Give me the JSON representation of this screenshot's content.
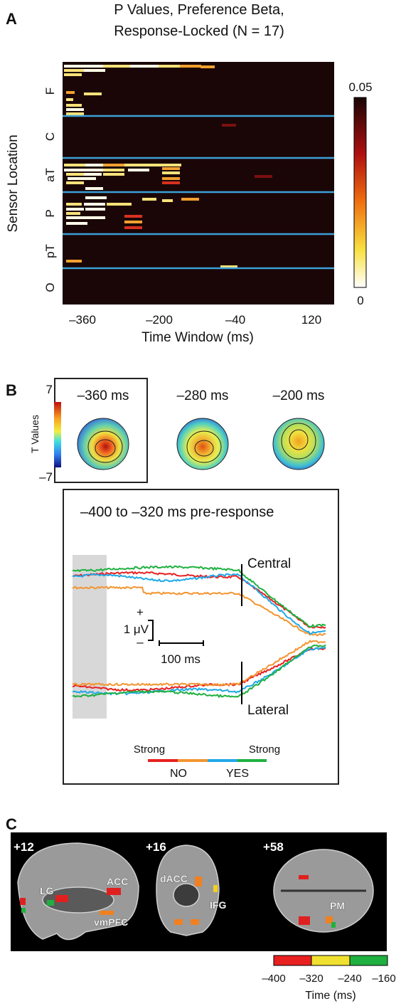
{
  "panel_a": {
    "label": "A",
    "title": [
      "P Values, Preference Beta,",
      "Response-Locked (N = 17)"
    ],
    "y_axis_label": "Sensor Location",
    "sensors": [
      "F",
      "C",
      "aT",
      "P",
      "pT",
      "O"
    ],
    "x_axis_label": "Time Window (ms)",
    "xticks": [
      "–360",
      "–200",
      "–40",
      "120"
    ],
    "colorbar": [
      "0.05",
      "0"
    ]
  },
  "panel_b": {
    "label": "B",
    "colorbar_label": "T Values",
    "colorbar_ticks": [
      "7",
      "–7"
    ],
    "maps": [
      "–360 ms",
      "–280 ms",
      "–200 ms"
    ],
    "inset": {
      "title": "–400 to –320 ms pre-response",
      "traces": [
        "Central",
        "Lateral"
      ],
      "scale": {
        "plus": "+",
        "amplitude": "1 μV",
        "minus": "–",
        "time": "100 ms"
      },
      "legend": {
        "strong_left": "Strong",
        "strong_right": "Strong",
        "no": "NO",
        "yes": "YES"
      }
    }
  },
  "panel_c": {
    "label": "C",
    "slices": [
      "+12",
      "+16",
      "+58"
    ],
    "regions": [
      "LG",
      "ACC",
      "vmPFC",
      "dACC",
      "IFG",
      "PM"
    ],
    "colorbar_ticks": [
      "–400",
      "–320",
      "–240",
      "–160"
    ],
    "colorbar_label": "Time (ms)"
  }
}
